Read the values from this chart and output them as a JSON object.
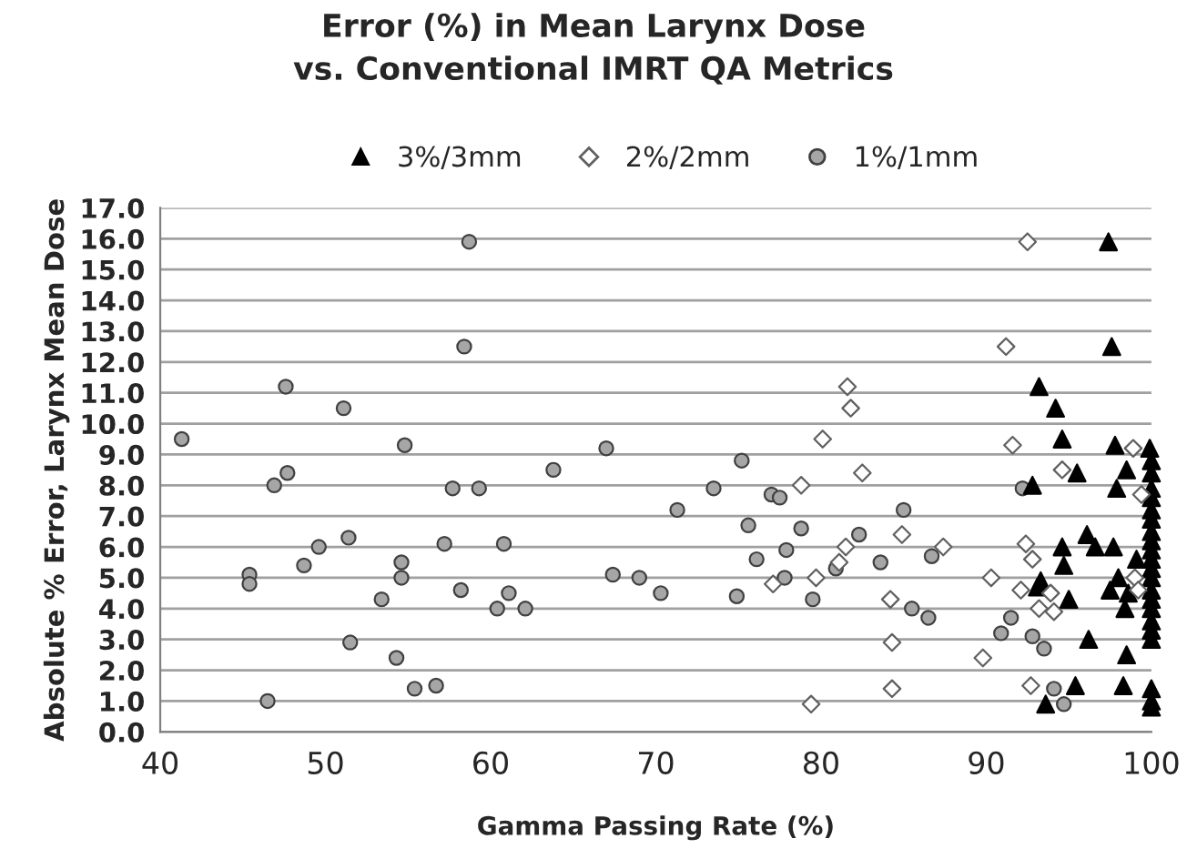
{
  "chart_data": {
    "type": "scatter",
    "title": "Error (%) in Mean Larynx Dose\nvs. Conventional IMRT QA Metrics",
    "xlabel": "Gamma Passing Rate (%)",
    "ylabel": "Absolute % Error, Larynx Mean Dose",
    "xlim": [
      40,
      100
    ],
    "xticks": [
      40,
      50,
      60,
      70,
      80,
      90,
      100
    ],
    "ylim": [
      0,
      17
    ],
    "yticks": [
      {
        "value": 0,
        "label": "0.0"
      },
      {
        "value": 1,
        "label": "1.0"
      },
      {
        "value": 2,
        "label": "2.0"
      },
      {
        "value": 3,
        "label": "3.0"
      },
      {
        "value": 4,
        "label": "4.0"
      },
      {
        "value": 5,
        "label": "5.0"
      },
      {
        "value": 6,
        "label": "6.0"
      },
      {
        "value": 7,
        "label": "7.0"
      },
      {
        "value": 8,
        "label": "8.0"
      },
      {
        "value": 9,
        "label": "9.0"
      },
      {
        "value": 10,
        "label": "10.0"
      },
      {
        "value": 11,
        "label": "11.0"
      },
      {
        "value": 12,
        "label": "12.0"
      },
      {
        "value": 13,
        "label": "13.0"
      },
      {
        "value": 14,
        "label": "14.0"
      },
      {
        "value": 15,
        "label": "15.0"
      },
      {
        "value": 16,
        "label": "16.0"
      },
      {
        "value": 17,
        "label": "17.0"
      }
    ],
    "grid": "y",
    "legend": "top",
    "series": [
      {
        "name": "3%/3mm",
        "color": "#000000",
        "marker": "triangle",
        "x": [
          97.4,
          97.6,
          93.2,
          94.2,
          94.6,
          97.8,
          99.9,
          98.5,
          95.5,
          97.9,
          92.8,
          96.1,
          96.6,
          97.7,
          94.6,
          94.7,
          93.3,
          93.1,
          97.5,
          98.0,
          98.6,
          98.4,
          99.1,
          95.0,
          96.2,
          98.5,
          95.4,
          98.3,
          93.6,
          100,
          100,
          100,
          100,
          100,
          100,
          100,
          100,
          100,
          100,
          100,
          100,
          100,
          100,
          100,
          100,
          100,
          100,
          100,
          100,
          100
        ],
        "values": [
          15.9,
          12.5,
          11.2,
          10.5,
          9.5,
          9.3,
          9.2,
          8.5,
          8.4,
          7.9,
          8.0,
          6.4,
          6.0,
          6.0,
          6.0,
          5.4,
          4.9,
          4.7,
          4.6,
          5.0,
          4.5,
          4.0,
          5.6,
          4.3,
          3.0,
          2.5,
          1.5,
          1.5,
          0.9,
          8.8,
          8.4,
          7.9,
          7.6,
          7.2,
          6.9,
          6.5,
          6.2,
          5.9,
          5.6,
          5.3,
          5.0,
          4.6,
          4.3,
          4.0,
          3.6,
          3.3,
          3.0,
          1.4,
          1.0,
          0.8
        ]
      },
      {
        "name": "2%/2mm",
        "color": "#ffffff",
        "marker": "diamond",
        "x": [
          81.6,
          81.8,
          80.1,
          78.8,
          82.5,
          77.1,
          79.7,
          81.5,
          81.1,
          79.4,
          84.9,
          87.4,
          84.2,
          84.3,
          84.3,
          92.5,
          91.2,
          91.6,
          94.6,
          92.4,
          92.8,
          90.3,
          92.1,
          93.2,
          94.1,
          93.9,
          89.8,
          92.7,
          98.9,
          99.4,
          99.0,
          99.2
        ],
        "values": [
          11.2,
          10.5,
          9.5,
          8.0,
          8.4,
          4.8,
          5.0,
          6.0,
          5.5,
          0.9,
          6.4,
          6.0,
          4.3,
          2.9,
          1.4,
          15.9,
          12.5,
          9.3,
          8.5,
          6.1,
          5.6,
          5.0,
          4.6,
          4.0,
          3.9,
          4.5,
          2.4,
          1.5,
          9.2,
          7.7,
          5.0,
          4.6
        ]
      },
      {
        "name": "1%/1mm",
        "color": "#a6a6a6",
        "marker": "circle",
        "x": [
          58.7,
          58.4,
          47.6,
          51.1,
          41.3,
          54.8,
          47.7,
          46.9,
          57.7,
          59.3,
          51.4,
          49.6,
          48.7,
          45.4,
          45.4,
          54.6,
          54.6,
          57.2,
          60.8,
          53.4,
          58.2,
          61.1,
          60.4,
          62.1,
          51.5,
          54.3,
          55.4,
          56.7,
          46.5,
          63.8,
          67.0,
          71.3,
          73.5,
          75.2,
          77.0,
          77.5,
          75.6,
          78.8,
          67.4,
          69.0,
          70.3,
          74.9,
          76.1,
          77.9,
          77.8,
          79.5,
          80.9,
          82.3,
          85.0,
          83.6,
          86.7,
          85.5,
          86.5,
          91.5,
          90.9,
          92.8,
          93.5,
          92.2,
          94.1,
          94.7
        ],
        "values": [
          15.9,
          12.5,
          11.2,
          10.5,
          9.5,
          9.3,
          8.4,
          8.0,
          7.9,
          7.9,
          6.3,
          6.0,
          5.4,
          5.1,
          4.8,
          5.5,
          5.0,
          6.1,
          6.1,
          4.3,
          4.6,
          4.5,
          4.0,
          4.0,
          2.9,
          2.4,
          1.4,
          1.5,
          1.0,
          8.5,
          9.2,
          7.2,
          7.9,
          8.8,
          7.7,
          7.6,
          6.7,
          6.6,
          5.1,
          5.0,
          4.5,
          4.4,
          5.6,
          5.9,
          5.0,
          4.3,
          5.3,
          6.4,
          7.2,
          5.5,
          5.7,
          4.0,
          3.7,
          3.7,
          3.2,
          3.1,
          2.7,
          7.9,
          1.4,
          0.9
        ]
      }
    ]
  }
}
